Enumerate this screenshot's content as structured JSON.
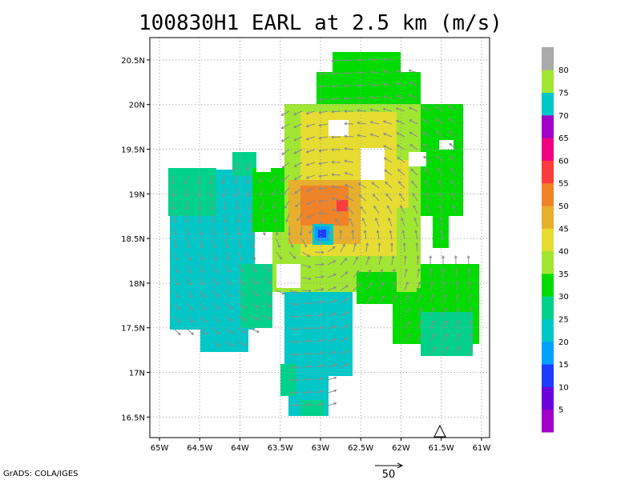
{
  "title": "100830H1 EARL at 2.5 km (m/s)",
  "credit": "GrADS: COLA/IGES",
  "map": {
    "type": "wind-speed-contour-map",
    "x_axis": {
      "labels": [
        "65W",
        "64.5W",
        "64W",
        "63.5W",
        "63W",
        "62.5W",
        "62W",
        "61.5W",
        "61W"
      ],
      "values": [
        -65,
        -64.5,
        -64,
        -63.5,
        -63,
        -62.5,
        -62,
        -61.5,
        -61
      ],
      "range": [
        -65.12,
        -60.9
      ]
    },
    "y_axis": {
      "labels": [
        "16.5N",
        "17N",
        "17.5N",
        "18N",
        "18.5N",
        "19N",
        "19.5N",
        "20N",
        "20.5N"
      ],
      "values": [
        16.5,
        17,
        17.5,
        18,
        18.5,
        19,
        19.5,
        20,
        20.5
      ],
      "range": [
        16.27,
        20.75
      ]
    },
    "grid": true,
    "storm_center": {
      "lon": -63.0,
      "lat": 18.55
    },
    "reference_vector": {
      "label": "50"
    }
  },
  "colorbar": {
    "levels": [
      {
        "label": "5",
        "color": "#a000c8"
      },
      {
        "label": "10",
        "color": "#6e00dc"
      },
      {
        "label": "15",
        "color": "#1e3cff"
      },
      {
        "label": "20",
        "color": "#00a0ff"
      },
      {
        "label": "25",
        "color": "#00c8c8"
      },
      {
        "label": "30",
        "color": "#00d28c"
      },
      {
        "label": "35",
        "color": "#00dc00"
      },
      {
        "label": "40",
        "color": "#a0e632"
      },
      {
        "label": "45",
        "color": "#e6dc32"
      },
      {
        "label": "50",
        "color": "#e6af2d"
      },
      {
        "label": "55",
        "color": "#f08228"
      },
      {
        "label": "60",
        "color": "#fa3c3c"
      },
      {
        "label": "65",
        "color": "#f00082"
      },
      {
        "label": "70",
        "color": "#a000c8"
      },
      {
        "label": "75",
        "color": "#00c8c8"
      },
      {
        "label": "80",
        "color": "#a0e632"
      },
      {
        "label": "",
        "color": "#aaaaaa"
      }
    ]
  }
}
